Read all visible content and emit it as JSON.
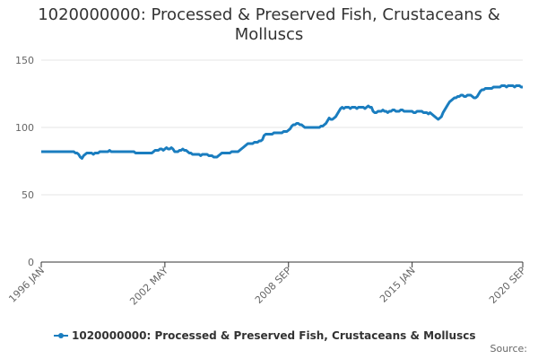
{
  "chart_data": {
    "type": "line",
    "title": "1020000000: Processed & Preserved Fish, Crustaceans & Molluscs",
    "source_label": "Source:",
    "categories": [
      "1996 JAN",
      null,
      null,
      null,
      null,
      null,
      null,
      null,
      null,
      null,
      null,
      null,
      null,
      null,
      null,
      null,
      null,
      null,
      null,
      null,
      null,
      null,
      null,
      null,
      null,
      null,
      null,
      null,
      null,
      null,
      null,
      null,
      null,
      null,
      null,
      null,
      null,
      null,
      null,
      null,
      null,
      null,
      null,
      null,
      null,
      null,
      null,
      null,
      null,
      null,
      null,
      null,
      null,
      null,
      null,
      null,
      null,
      null,
      null,
      null,
      null,
      null,
      null,
      null,
      null,
      null,
      null,
      null,
      null,
      null,
      null,
      null,
      null,
      null,
      null,
      null,
      "2002 MAY",
      null,
      null,
      null,
      null,
      null,
      null,
      null,
      null,
      null,
      null,
      null,
      null,
      null,
      null,
      null,
      null,
      null,
      null,
      null,
      null,
      null,
      null,
      null,
      null,
      null,
      null,
      null,
      null,
      null,
      null,
      null,
      null,
      null,
      null,
      null,
      null,
      null,
      null,
      null,
      null,
      null,
      null,
      null,
      null,
      null,
      null,
      null,
      null,
      null,
      null,
      null,
      null,
      null,
      null,
      null,
      null,
      null,
      null,
      null,
      null,
      null,
      null,
      null,
      null,
      null,
      null,
      null,
      null,
      null,
      null,
      null,
      null,
      null,
      null,
      null,
      "2008 SEP",
      null,
      null,
      null,
      null,
      null,
      null,
      null,
      null,
      null,
      null,
      null,
      null,
      null,
      null,
      null,
      null,
      null,
      null,
      null,
      null,
      null,
      null,
      null,
      null,
      null,
      null,
      null,
      null,
      null,
      null,
      null,
      null,
      null,
      null,
      null,
      null,
      null,
      null,
      null,
      null,
      null,
      null,
      null,
      null,
      null,
      null,
      null,
      null,
      null,
      null,
      null,
      null,
      null,
      null,
      null,
      null,
      null,
      null,
      null,
      null,
      null,
      null,
      null,
      null,
      null,
      null,
      null,
      null,
      null,
      null,
      null,
      null,
      null,
      null,
      null,
      "2015 JAN",
      null,
      null,
      null,
      null,
      null,
      null,
      null,
      null,
      null,
      null,
      null,
      null,
      null,
      null,
      null,
      null,
      null,
      null,
      null,
      null,
      null,
      null,
      null,
      null,
      null,
      null,
      null,
      null,
      null,
      null,
      null,
      null,
      null,
      null,
      null,
      null,
      null,
      null,
      null,
      null,
      null,
      null,
      null,
      null,
      null,
      null,
      null,
      null,
      null,
      null,
      null,
      null,
      null,
      null,
      null,
      null,
      null,
      null,
      null,
      null,
      null,
      null,
      null,
      null,
      null,
      null,
      null,
      "2020 SEP"
    ],
    "series": [
      {
        "name": "1020000000: Processed & Preserved Fish, Crustaceans & Molluscs",
        "color": "#1a7dbf",
        "values": [
          82,
          82,
          82,
          82,
          82,
          82,
          82,
          82,
          82,
          82,
          82,
          82,
          82,
          82,
          82,
          82,
          82,
          82,
          82,
          82,
          82,
          81,
          81,
          80,
          78,
          77,
          79,
          80,
          81,
          81,
          81,
          81,
          80,
          81,
          81,
          81,
          82,
          82,
          82,
          82,
          82,
          82,
          83,
          82,
          82,
          82,
          82,
          82,
          82,
          82,
          82,
          82,
          82,
          82,
          82,
          82,
          82,
          82,
          81,
          81,
          81,
          81,
          81,
          81,
          81,
          81,
          81,
          81,
          81,
          82,
          83,
          83,
          83,
          84,
          84,
          83,
          84,
          85,
          84,
          84,
          85,
          84,
          82,
          82,
          82,
          83,
          83,
          84,
          83,
          83,
          82,
          81,
          81,
          80,
          80,
          80,
          80,
          80,
          79,
          80,
          80,
          80,
          80,
          79,
          79,
          79,
          78,
          78,
          78,
          79,
          80,
          81,
          81,
          81,
          81,
          81,
          81,
          82,
          82,
          82,
          82,
          82,
          83,
          84,
          85,
          86,
          87,
          88,
          88,
          88,
          88,
          89,
          89,
          89,
          90,
          90,
          91,
          94,
          95,
          95,
          95,
          95,
          95,
          96,
          96,
          96,
          96,
          96,
          96,
          97,
          97,
          97,
          98,
          99,
          101,
          102,
          102,
          103,
          103,
          102,
          102,
          101,
          100,
          100,
          100,
          100,
          100,
          100,
          100,
          100,
          100,
          100,
          101,
          101,
          102,
          103,
          105,
          107,
          106,
          106,
          107,
          108,
          110,
          112,
          114,
          115,
          114,
          115,
          115,
          115,
          114,
          115,
          115,
          115,
          114,
          115,
          115,
          115,
          115,
          114,
          115,
          116,
          115,
          115,
          112,
          111,
          111,
          112,
          112,
          112,
          113,
          112,
          112,
          111,
          112,
          112,
          113,
          113,
          112,
          112,
          112,
          113,
          113,
          112,
          112,
          112,
          112,
          112,
          112,
          111,
          111,
          112,
          112,
          112,
          112,
          111,
          111,
          111,
          110,
          111,
          110,
          109,
          108,
          107,
          106,
          107,
          108,
          111,
          113,
          115,
          117,
          119,
          120,
          121,
          122,
          122,
          123,
          123,
          124,
          124,
          123,
          123,
          124,
          124,
          124,
          123,
          122,
          122,
          123,
          125,
          127,
          128,
          128,
          129,
          129,
          129,
          129,
          129,
          130,
          130,
          130,
          130,
          130,
          131,
          131,
          131,
          130,
          131,
          131,
          131,
          131,
          130,
          131,
          131,
          131,
          130,
          130
        ]
      }
    ],
    "ylim": [
      0,
      150
    ],
    "yticks": [
      0,
      50,
      100,
      150
    ],
    "grid": true
  }
}
